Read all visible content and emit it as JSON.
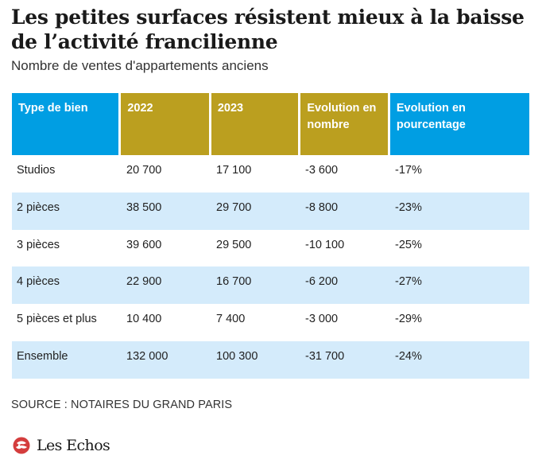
{
  "title": "Les petites surfaces résistent mieux à la baisse de l’activité francilienne",
  "subtitle": "Nombre de ventes d'appartements anciens",
  "colors": {
    "header_blue": "#009ee3",
    "header_gold": "#bb9f1f",
    "row_alt": "#d4ebfb",
    "logo_red": "#d43d3d"
  },
  "table": {
    "headers": [
      "Type de bien",
      "2022",
      "2023",
      "Evolution en nombre",
      "Evolution en pourcentage"
    ],
    "rows": [
      [
        "Studios",
        "20 700",
        "17 100",
        "-3 600",
        "-17%"
      ],
      [
        "2 pièces",
        "38 500",
        "29 700",
        "-8 800",
        "-23%"
      ],
      [
        "3 pièces",
        "39 600",
        "29 500",
        "-10 100",
        "-25%"
      ],
      [
        "4 pièces",
        "22 900",
        "16 700",
        "-6 200",
        "-27%"
      ],
      [
        "5 pièces et plus",
        "10 400",
        "7 400",
        "-3 000",
        "-29%"
      ],
      [
        "Ensemble",
        "132 000",
        "100 300",
        "-31 700",
        "-24%"
      ]
    ]
  },
  "source": "SOURCE : NOTAIRES DU GRAND PARIS",
  "brand": {
    "icon": "les-echos-logo-icon",
    "name": "Les Echos"
  }
}
